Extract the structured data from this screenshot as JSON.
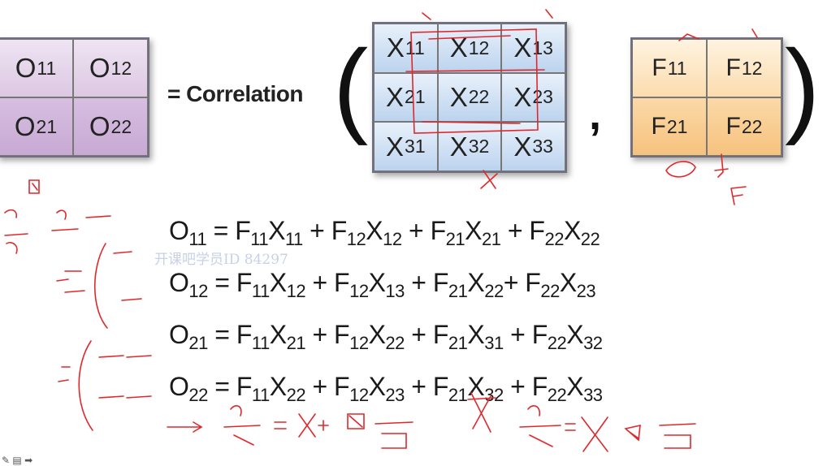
{
  "operator_label": "= Correlation",
  "comma": ",",
  "paren_left": "(",
  "paren_right": ")",
  "o_matrix": [
    [
      "O",
      "11"
    ],
    [
      "O",
      "12"
    ],
    [
      "O",
      "21"
    ],
    [
      "O",
      "22"
    ]
  ],
  "x_matrix": [
    [
      "X",
      "11"
    ],
    [
      "X",
      "12"
    ],
    [
      "X",
      "13"
    ],
    [
      "X",
      "21"
    ],
    [
      "X",
      "22"
    ],
    [
      "X",
      "23"
    ],
    [
      "X",
      "31"
    ],
    [
      "X",
      "32"
    ],
    [
      "X",
      "33"
    ]
  ],
  "f_matrix": [
    [
      "F",
      "11"
    ],
    [
      "F",
      "12"
    ],
    [
      "F",
      "21"
    ],
    [
      "F",
      "22"
    ]
  ],
  "equations": [
    [
      [
        "O",
        "11"
      ],
      [
        " = F",
        "11"
      ],
      [
        "X",
        "11"
      ],
      [
        " + F",
        "12"
      ],
      [
        "X",
        "12"
      ],
      [
        " + F",
        "21"
      ],
      [
        "X",
        "21"
      ],
      [
        " + F",
        "22"
      ],
      [
        "X",
        "22"
      ]
    ],
    [
      [
        "O",
        "12"
      ],
      [
        " = F",
        "11"
      ],
      [
        "X",
        "12"
      ],
      [
        " + F",
        "12"
      ],
      [
        "X",
        "13"
      ],
      [
        " + F",
        "21"
      ],
      [
        "X",
        "22"
      ],
      [
        "+ F",
        "22"
      ],
      [
        "X",
        "23"
      ]
    ],
    [
      [
        "O",
        "21"
      ],
      [
        " = F",
        "11"
      ],
      [
        "X",
        "21"
      ],
      [
        " + F",
        "12"
      ],
      [
        "X",
        "22"
      ],
      [
        " + F",
        "21"
      ],
      [
        "X",
        "31"
      ],
      [
        " + F",
        "22"
      ],
      [
        "X",
        "32"
      ]
    ],
    [
      [
        "O",
        "22"
      ],
      [
        " = F",
        "11"
      ],
      [
        "X",
        "22"
      ],
      [
        " + F",
        "12"
      ],
      [
        "X",
        "23"
      ],
      [
        " + F",
        "21"
      ],
      [
        "X",
        "32"
      ],
      [
        " + F",
        "22"
      ],
      [
        "X",
        "33"
      ]
    ]
  ],
  "watermark": "开课吧学员ID 84297",
  "colors": {
    "annotation_ink": "#e0282c",
    "o_fill": "#dcc8e2",
    "x_fill": "#c5d9f1",
    "f_fill": "#fbd49a"
  },
  "toolbar_icons": [
    "pen-icon",
    "page-icon",
    "arrow-icon"
  ]
}
